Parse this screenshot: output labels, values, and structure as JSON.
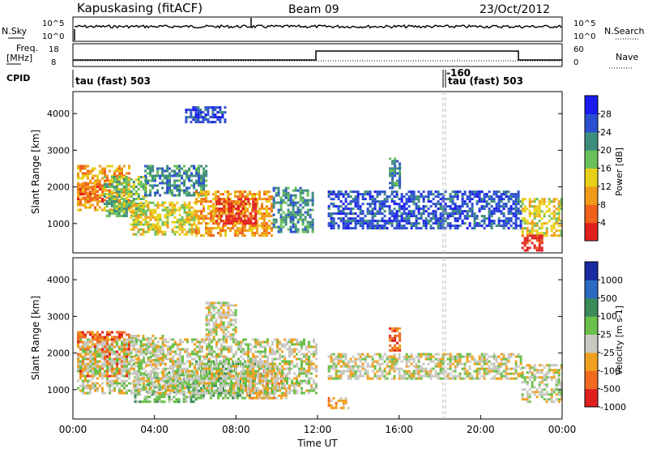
{
  "header": {
    "radar": "Kapuskasing (fitACF)",
    "beam": "Beam 09",
    "date": "23/Oct/2012"
  },
  "noise_panel": {
    "left_label": "N.Sky",
    "right_label": "N.Search",
    "left_ticks": [
      "10^5",
      "10^0"
    ],
    "right_ticks": [
      "10^5",
      "10^0"
    ]
  },
  "freq_panel": {
    "left_label_1": "Freq.",
    "left_label_2": "[MHz]",
    "right_label": "Nave",
    "left_ticks": [
      "18",
      "8"
    ],
    "right_ticks": [
      "60",
      "0"
    ]
  },
  "cpid_panel": {
    "label": "CPID",
    "segments": [
      {
        "text": "tau (fast) 503",
        "start_hour": 0.0
      },
      {
        "text": "tau (fast) 503",
        "start_hour": 18.25
      }
    ],
    "marker_label": "-160"
  },
  "chart_data": [
    {
      "type": "heatmap",
      "name": "power",
      "xlabel": "",
      "ylabel": "Slant Range [km]",
      "xlim": [
        0,
        24
      ],
      "ylim": [
        200,
        4600
      ],
      "yticks": [
        "1000",
        "2000",
        "3000",
        "4000"
      ],
      "colorbar_label": "Power [dB]",
      "colorbar_ticks": [
        "28",
        "24",
        "20",
        "16",
        "12",
        "8",
        "4"
      ],
      "colors": [
        "#1a1aee",
        "#2b4fd0",
        "#3d8d7d",
        "#6abf5a",
        "#e8d01a",
        "#f09a1a",
        "#f0621a",
        "#e02020"
      ],
      "regions": [
        {
          "t0": 0.2,
          "t1": 2.8,
          "r0": 1400,
          "r1": 2600,
          "level": 5
        },
        {
          "t0": 0.2,
          "t1": 1.5,
          "r0": 1600,
          "r1": 2100,
          "level": 6
        },
        {
          "t0": 1.5,
          "t1": 3.6,
          "r0": 1200,
          "r1": 2300,
          "level": 3
        },
        {
          "t0": 2.8,
          "t1": 6.0,
          "r0": 700,
          "r1": 1600,
          "level": 4
        },
        {
          "t0": 3.5,
          "t1": 6.5,
          "r0": 1800,
          "r1": 2600,
          "level": 2
        },
        {
          "t0": 6.0,
          "t1": 9.8,
          "r0": 700,
          "r1": 1900,
          "level": 5
        },
        {
          "t0": 7.0,
          "t1": 9.0,
          "r0": 1000,
          "r1": 1700,
          "level": 7
        },
        {
          "t0": 9.8,
          "t1": 11.8,
          "r0": 800,
          "r1": 2000,
          "level": 2
        },
        {
          "t0": 12.5,
          "t1": 22.0,
          "r0": 900,
          "r1": 1900,
          "level": 1
        },
        {
          "t0": 15.5,
          "t1": 16.0,
          "r0": 2000,
          "r1": 2800,
          "level": 2
        },
        {
          "t0": 22.0,
          "t1": 24.0,
          "r0": 700,
          "r1": 1700,
          "level": 4
        },
        {
          "t0": 22.0,
          "t1": 23.0,
          "r0": 300,
          "r1": 700,
          "level": 7
        },
        {
          "t0": 5.5,
          "t1": 7.5,
          "r0": 3800,
          "r1": 4200,
          "level": 1
        }
      ]
    },
    {
      "type": "heatmap",
      "name": "velocity",
      "xlabel": "Time UT",
      "ylabel": "Slant Range [km]",
      "xlim": [
        0,
        24
      ],
      "ylim": [
        200,
        4600
      ],
      "yticks": [
        "1000",
        "2000",
        "3000",
        "4000"
      ],
      "xticks": [
        "00:00",
        "04:00",
        "08:00",
        "12:00",
        "16:00",
        "20:00",
        "00:00"
      ],
      "colorbar_label": "Velocity [m s-1]",
      "colorbar_ticks": [
        "1000",
        "500",
        "100",
        "25",
        "-25",
        "-100",
        "-500",
        "-1000"
      ],
      "colors": [
        "#1a2aa0",
        "#2a6ac0",
        "#3a8a5a",
        "#6ac04a",
        "#c8c8c0",
        "#f0a020",
        "#f06a20",
        "#e02020"
      ],
      "regions": [
        {
          "t0": 0.2,
          "t1": 2.8,
          "r0": 1400,
          "r1": 2600,
          "level": 6
        },
        {
          "t0": 2.8,
          "t1": 4.5,
          "r0": 1700,
          "r1": 2500,
          "level": 4
        },
        {
          "t0": 3.0,
          "t1": 6.0,
          "r0": 700,
          "r1": 1500,
          "level": 3
        },
        {
          "t0": 6.0,
          "t1": 9.5,
          "r0": 800,
          "r1": 1800,
          "level": 3
        },
        {
          "t0": 8.5,
          "t1": 10.5,
          "r0": 800,
          "r1": 1600,
          "level": 5
        },
        {
          "t0": 0.2,
          "t1": 12.0,
          "r0": 900,
          "r1": 2400,
          "level": 4
        },
        {
          "t0": 12.5,
          "t1": 13.5,
          "r0": 500,
          "r1": 800,
          "level": 5
        },
        {
          "t0": 12.5,
          "t1": 22.0,
          "r0": 1300,
          "r1": 2000,
          "level": 4
        },
        {
          "t0": 15.5,
          "t1": 16.0,
          "r0": 2100,
          "r1": 2700,
          "level": 6
        },
        {
          "t0": 22.0,
          "t1": 24.0,
          "r0": 700,
          "r1": 1700,
          "level": 4
        },
        {
          "t0": 6.5,
          "t1": 8.0,
          "r0": 2400,
          "r1": 3400,
          "level": 4
        }
      ]
    }
  ]
}
